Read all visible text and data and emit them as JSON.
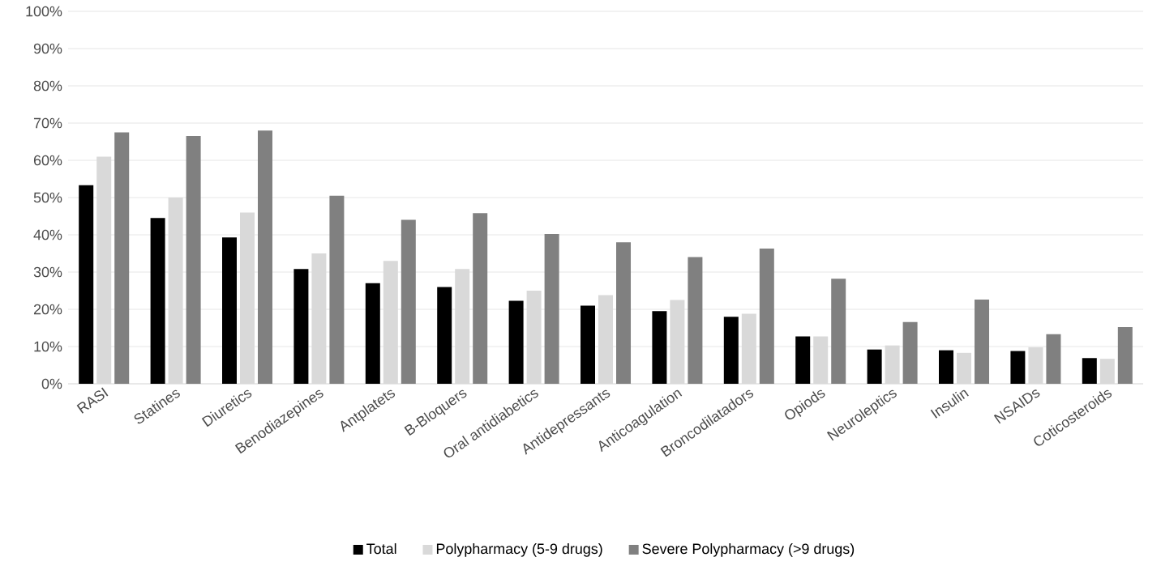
{
  "chart_data": {
    "type": "bar",
    "categories": [
      "RASI",
      "Statines",
      "Diuretics",
      "Benodiazepines",
      "Antplatets",
      "B-Bloquers",
      "Oral antidiabetics",
      "Antidepressants",
      "Anticoagulation",
      "Broncodilatadors",
      "Opiods",
      "Neuroleptics",
      "Insulin",
      "NSAIDs",
      "Coticosteroids"
    ],
    "series": [
      {
        "name": "Total",
        "color": "#000000",
        "values": [
          53.3,
          44.5,
          39.3,
          30.8,
          27,
          26,
          22.3,
          21,
          19.5,
          18,
          12.7,
          9.2,
          9,
          8.8,
          6.9
        ]
      },
      {
        "name": "Polypharmacy (5-9 drugs)",
        "color": "#d9d9d9",
        "values": [
          61,
          50,
          46,
          35,
          33,
          30.8,
          25,
          23.8,
          22.5,
          18.8,
          12.7,
          10.3,
          8.3,
          9.8,
          6.7
        ]
      },
      {
        "name": "Severe Polypharmacy (>9 drugs)",
        "color": "#808080",
        "values": [
          67.5,
          66.5,
          68,
          50.5,
          44,
          45.8,
          40.2,
          38,
          34,
          36.3,
          28.2,
          16.6,
          22.6,
          13.3,
          15.2
        ]
      }
    ],
    "ylim": [
      0,
      100
    ],
    "yticks": [
      {
        "value": 0,
        "label": "0%"
      },
      {
        "value": 10,
        "label": "10%"
      },
      {
        "value": 20,
        "label": "20%"
      },
      {
        "value": 30,
        "label": "30%"
      },
      {
        "value": 40,
        "label": "40%"
      },
      {
        "value": 50,
        "label": "50%"
      },
      {
        "value": 60,
        "label": "60%"
      },
      {
        "value": 70,
        "label": "70%"
      },
      {
        "value": 80,
        "label": "80%"
      },
      {
        "value": 90,
        "label": "90%"
      },
      {
        "value": 100,
        "label": "100%"
      }
    ],
    "grid": "y",
    "legend": "bottom"
  }
}
